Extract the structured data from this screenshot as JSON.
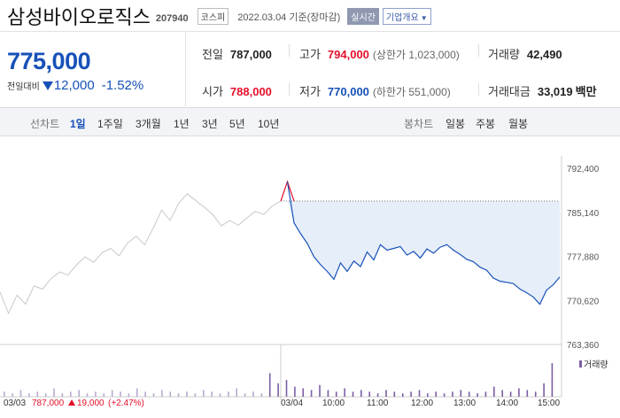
{
  "header": {
    "stock_name": "삼성바이오로직스",
    "stock_code": "207940",
    "market": "코스피",
    "date_info": "2022.03.04 기준(장마감)",
    "realtime_label": "실시간",
    "company_info_label": "기업개요"
  },
  "quote": {
    "price": "775,000",
    "change_label": "전일대비",
    "change_amount": "12,000",
    "change_direction": "down",
    "change_percent": "-1.52%",
    "prev_close_label": "전일",
    "prev_close": "787,000",
    "high_label": "고가",
    "high": "794,000",
    "upper_limit": "(상한가 1,023,000)",
    "volume_label": "거래량",
    "volume": "42,490",
    "open_label": "시가",
    "open": "788,000",
    "low_label": "저가",
    "low": "770,000",
    "lower_limit": "(하한가 551,000)",
    "amount_label": "거래대금",
    "amount": "33,019",
    "amount_unit": "백만"
  },
  "tabs": {
    "line_chart_label": "선차트",
    "line_periods": [
      "1일",
      "1주일",
      "3개월",
      "1년",
      "3년",
      "5년",
      "10년"
    ],
    "active_period": "1일",
    "candle_label": "봉차트",
    "candle_periods": [
      "일봉",
      "주봉",
      "월봉"
    ]
  },
  "colors": {
    "up": "#e4102a",
    "down": "#1751b8",
    "prev_day_line": "#c8c8c8",
    "area_fill": "#e6eef9",
    "volume_bar": "#7b5ea6"
  },
  "chart_data": {
    "type": "line",
    "y_ticks": [
      "792,400",
      "785,140",
      "777,880",
      "770,620",
      "763,360"
    ],
    "ylim": [
      763360,
      792400
    ],
    "x_labels": [
      "03/03",
      "03/04",
      "10:00",
      "11:00",
      "12:00",
      "13:00",
      "14:00",
      "15:00"
    ],
    "reference_price": 787000,
    "volume_label": "거래량",
    "prev_day_summary": {
      "date": "03/03",
      "close": "787,000",
      "change": "19,000",
      "change_pct": "(+2.47%)"
    },
    "series": [
      {
        "name": "03/03",
        "values": [
          772000,
          768500,
          771500,
          770000,
          773000,
          772500,
          774200,
          775300,
          774800,
          776500,
          777800,
          776900,
          778500,
          779200,
          778000,
          780100,
          781200,
          779800,
          782500,
          785500,
          783800,
          786600,
          788200,
          787100,
          786000,
          784800,
          782900,
          783800,
          783000,
          784200,
          785300,
          784800,
          786200,
          787000
        ]
      },
      {
        "name": "03/04",
        "values": [
          787000,
          790200,
          783400,
          781600,
          780000,
          777800,
          776500,
          775400,
          774100,
          776800,
          775400,
          777100,
          776200,
          778600,
          777300,
          779800,
          778900,
          779200,
          779500,
          778100,
          778700,
          777600,
          779100,
          778400,
          779400,
          779800,
          778900,
          778200,
          777400,
          777000,
          776100,
          775600,
          774300,
          773800,
          773600,
          773400,
          772500,
          771900,
          771200,
          770000,
          772300,
          773200,
          774500
        ]
      }
    ],
    "volume": [
      3,
      2,
      4,
      2,
      3,
      2,
      5,
      2,
      3,
      4,
      2,
      3,
      2,
      4,
      3,
      2,
      5,
      3,
      2,
      4,
      3,
      2,
      3,
      2,
      4,
      3,
      2,
      3,
      5,
      2,
      3,
      2,
      14,
      8,
      10,
      6,
      5,
      4,
      7,
      4,
      3,
      5,
      3,
      4,
      3,
      2,
      4,
      3,
      2,
      3,
      4,
      2,
      3,
      2,
      3,
      4,
      3,
      2,
      3,
      6,
      4,
      3,
      5,
      4,
      3,
      8,
      20
    ]
  }
}
